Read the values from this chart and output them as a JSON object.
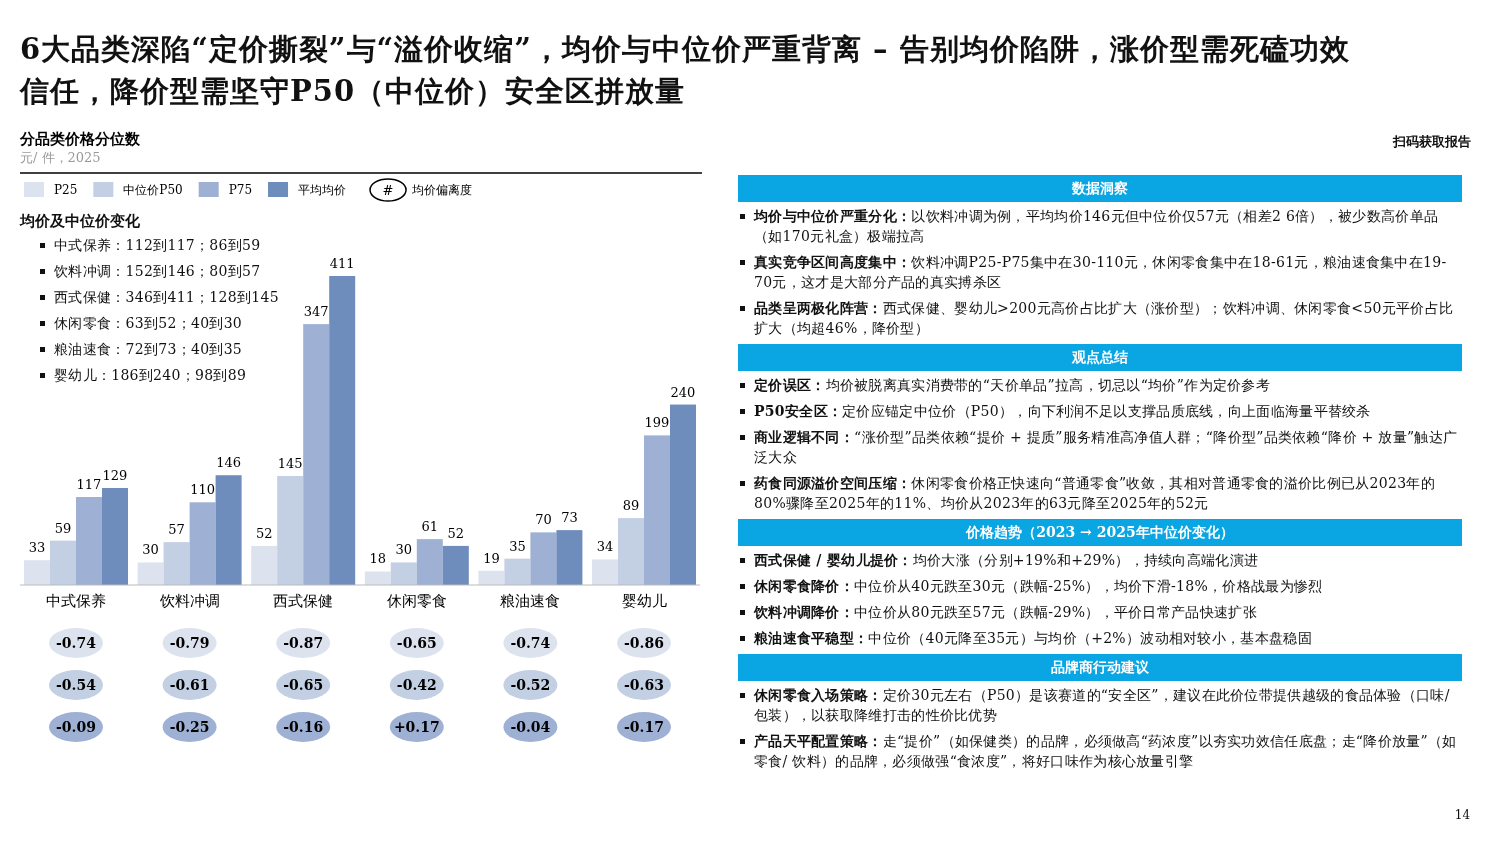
{
  "chart_data": [
    {
      "type": "other",
      "title": "6大品类深陷“定价撕裂”与“溢价收缩”，均价与中位价严重背离 – 告别均价陷阱，涨价型需死磕功效信任，降价型需坚守P50（中位价）安全区拼放量",
      "annotations": [
        "扫码获取报告",
        "14"
      ]
    },
    {
      "type": "bar",
      "title": "分品类价格分位数",
      "subtitle": "元/ 件，2025",
      "categories": [
        "中式保养",
        "饮料冲调",
        "西式保健",
        "休闲零食",
        "粮油速食",
        "婴幼儿"
      ],
      "series": [
        {
          "name": "P25",
          "color": "#dde3ee",
          "values": [
            33,
            30,
            52,
            18,
            19,
            34
          ]
        },
        {
          "name": "中位价P50",
          "color": "#c3cfe3",
          "values": [
            59,
            57,
            145,
            30,
            35,
            89
          ]
        },
        {
          "name": "P75",
          "color": "#9eb0d3",
          "values": [
            117,
            110,
            347,
            61,
            70,
            199
          ]
        },
        {
          "name": "平均均价",
          "color": "#6e8cbc",
          "values": [
            129,
            146,
            411,
            52,
            73,
            240
          ]
        }
      ],
      "data_labels": true,
      "legend": "top left"
    },
    {
      "type": "other",
      "title": "均价偏离度",
      "legend_title": "#",
      "annotations": [
        "-0.74",
        "-0.79",
        "-0.87",
        "-0.65",
        "-0.74",
        "-0.86",
        "-0.54",
        "-0.61",
        "-0.65",
        "-0.42",
        "-0.52",
        "-0.63",
        "-0.09",
        "-0.25",
        "-0.16",
        "+0.17",
        "-0.04",
        "-0.17"
      ]
    },
    {
      "type": "other",
      "title": "均价及中位价变化",
      "annotations": [
        "中式保养：112到117；86到59",
        "饮料冲调：152到146；80到57",
        "西式保健：346到411；128到145",
        "休闲零食：63到52；40到30",
        "粮油速食：72到73；40到35",
        "婴幼儿：186到240；98到89"
      ]
    },
    {
      "type": "other",
      "title": "数据洞察",
      "annotations": [
        "**均价与中位价严重分化：**以饮料冲调为例，平均均价146元但中位价仅57元（相差2 6倍），被少数高价单品（如170元礼盒）极端拉高",
        "**真实竞争区间高度集中：**饮料冲调P25-P75集中在30-110元，休闲零食集中在18-61元，粮油速食集中在19-70元，这才是大部分产品的真实搏杀区",
        "**品类呈两极化阵营：**西式保健、婴幼儿>200元高价占比扩大（涨价型）；饮料冲调、休闲零食<50元平价占比扩大（均超46%，降价型）"
      ]
    },
    {
      "type": "other",
      "title": "观点总结",
      "annotations": [
        "**定价误区：**均价被脱离真实消费带的“天价单品”拉高，切忌以“均价”作为定价参考",
        "**P50安全区：**定价应锚定中位价（P50），向下利润不足以支撑品质底线，向上面临海量平替绞杀",
        "**商业逻辑不同：**“涨价型”品类依赖“提价 + 提质”服务精准高净值人群；“降价型”品类依赖“降价 + 放量”触达广泛大众",
        "**药食同源溢价空间压缩：**休闲零食价格正快速向“普通零食”收敛，其相对普通零食的溢价比例已从2023年的80%骤降至2025年的11%、均价从2023年的63元降至2025年的52元"
      ]
    },
    {
      "type": "other",
      "title": "价格趋势（2023 → 2025年中位价变化）",
      "annotations": [
        "**西式保健 / 婴幼儿提价：**均价大涨（分别+19%和+29%），持续向高端化演进",
        "**休闲零食降价：**中位价从40元跌至30元（跌幅-25%），均价下滑-18%，价格战最为惨烈",
        "**饮料冲调降价：**中位价从80元跌至57元（跌幅-29%），平价日常产品快速扩张",
        "**粮油速食平稳型：**中位价（40元降至35元）与均价（+2%）波动相对较小，基本盘稳固"
      ]
    },
    {
      "type": "other",
      "title": "品牌商行动建议",
      "annotations": [
        "**休闲零食入场策略：**定价30元左右（P50）是该赛道的“安全区”，建议在此价位带提供越级的食品体验（口味/ 包装），以获取降维打击的性价比优势",
        "**产品天平配置策略：**走“提价”（如保健类）的品牌，必须做高“药浓度”以夯实功效信任底盘；走“降价放量”（如零食/ 饮料）的品牌，必须做强“食浓度”，将好口味作为核心放量引擎"
      ]
    }
  ]
}
